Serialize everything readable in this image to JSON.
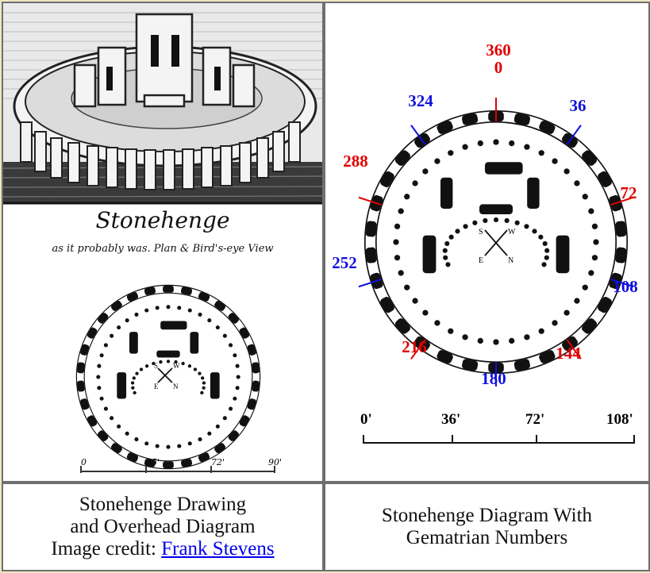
{
  "left_panel": {
    "drawing_title": "Stonehenge",
    "drawing_subtitle": "as it probably was. Plan & Bird's-eye View",
    "compass": {
      "n": "N",
      "s": "S",
      "e": "E",
      "w": "W"
    },
    "scale_labels": [
      "0",
      "35'",
      "72'",
      "90'"
    ]
  },
  "right_panel": {
    "markers": [
      {
        "label": "360",
        "color": "#e00000",
        "angle": 0
      },
      {
        "label": "0",
        "color": "#e00000",
        "angle": 0
      },
      {
        "label": "36",
        "color": "#1010e0",
        "angle": 36
      },
      {
        "label": "72",
        "color": "#e00000",
        "angle": 72
      },
      {
        "label": "108",
        "color": "#1010e0",
        "angle": 108
      },
      {
        "label": "144",
        "color": "#e00000",
        "angle": 144
      },
      {
        "label": "180",
        "color": "#1010e0",
        "angle": 180
      },
      {
        "label": "216",
        "color": "#e00000",
        "angle": 216
      },
      {
        "label": "252",
        "color": "#1010e0",
        "angle": 252
      },
      {
        "label": "288",
        "color": "#e00000",
        "angle": 288
      },
      {
        "label": "324",
        "color": "#1010e0",
        "angle": 324
      }
    ],
    "compass": {
      "n": "N",
      "s": "S",
      "e": "E",
      "w": "W"
    },
    "scale_labels": [
      "0'",
      "36'",
      "72'",
      "108'"
    ]
  },
  "captions": {
    "left_line1": "Stonehenge Drawing",
    "left_line2": "and Overhead Diagram",
    "left_line3_prefix": "Image credit: ",
    "left_link": "Frank Stevens",
    "right_line1": "Stonehenge Diagram With",
    "right_line2": "Gematrian Numbers"
  }
}
